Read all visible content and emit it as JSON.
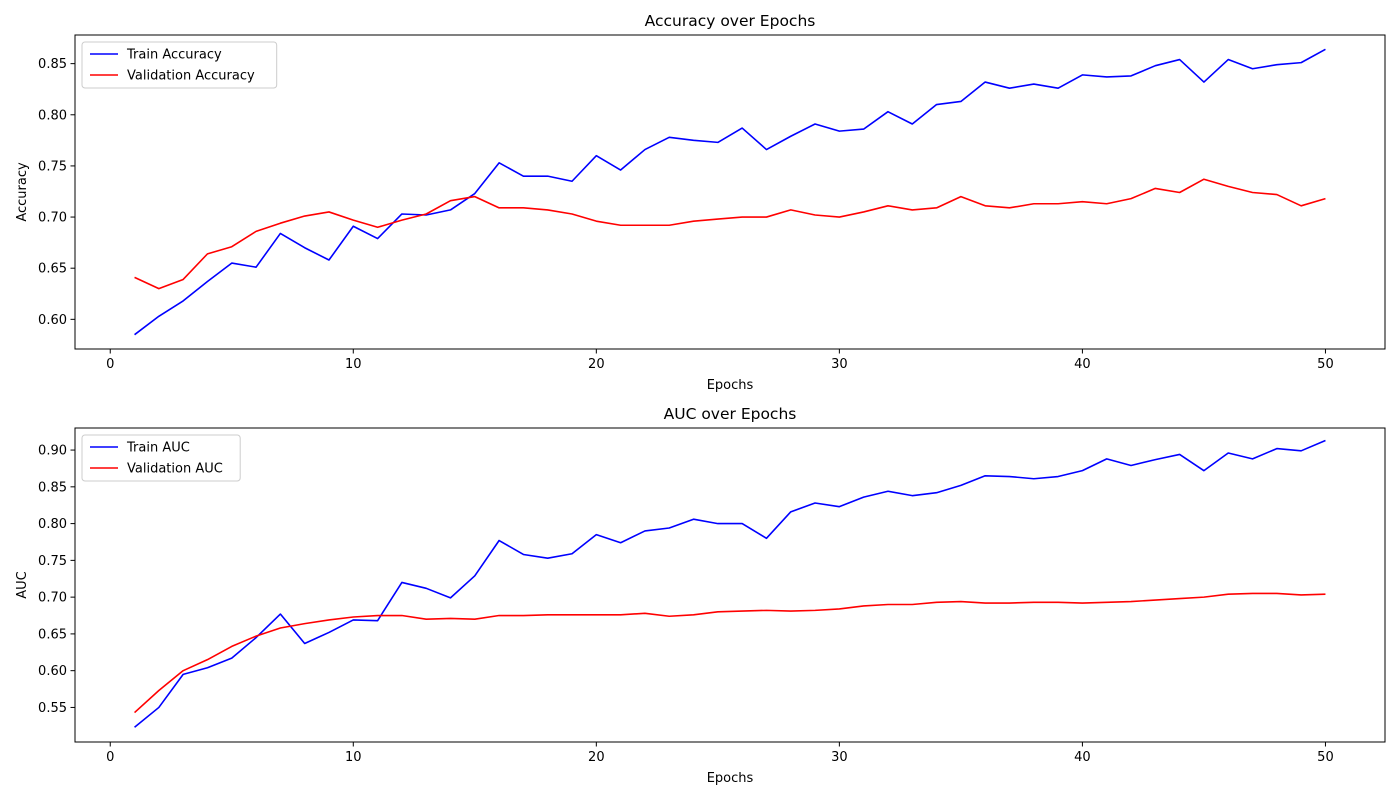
{
  "chart_data": [
    {
      "type": "line",
      "title": "Accuracy over Epochs",
      "xlabel": "Epochs",
      "ylabel": "Accuracy",
      "xlim": [
        -1.45,
        52.45
      ],
      "ylim": [
        0.571,
        0.878
      ],
      "xticks": [
        0,
        10,
        20,
        30,
        40,
        50
      ],
      "yticks": [
        0.6,
        0.65,
        0.7,
        0.75,
        0.8,
        0.85
      ],
      "ytick_labels": [
        "0.60",
        "0.65",
        "0.70",
        "0.75",
        "0.80",
        "0.85"
      ],
      "grid": false,
      "legend": "upper left",
      "x": [
        1,
        2,
        3,
        4,
        5,
        6,
        7,
        8,
        9,
        10,
        11,
        12,
        13,
        14,
        15,
        16,
        17,
        18,
        19,
        20,
        21,
        22,
        23,
        24,
        25,
        26,
        27,
        28,
        29,
        30,
        31,
        32,
        33,
        34,
        35,
        36,
        37,
        38,
        39,
        40,
        41,
        42,
        43,
        44,
        45,
        46,
        47,
        48,
        49,
        50
      ],
      "series": [
        {
          "name": "Train Accuracy",
          "color": "#0000ff",
          "values": [
            0.585,
            0.603,
            0.618,
            0.637,
            0.655,
            0.651,
            0.684,
            0.67,
            0.658,
            0.691,
            0.679,
            0.703,
            0.702,
            0.707,
            0.723,
            0.753,
            0.74,
            0.74,
            0.735,
            0.76,
            0.746,
            0.766,
            0.778,
            0.775,
            0.773,
            0.787,
            0.766,
            0.779,
            0.791,
            0.784,
            0.786,
            0.803,
            0.791,
            0.81,
            0.813,
            0.832,
            0.826,
            0.83,
            0.826,
            0.839,
            0.837,
            0.838,
            0.848,
            0.854,
            0.832,
            0.854,
            0.845,
            0.849,
            0.851,
            0.864
          ]
        },
        {
          "name": "Validation Accuracy",
          "color": "#ff0000",
          "values": [
            0.641,
            0.63,
            0.639,
            0.664,
            0.671,
            0.686,
            0.694,
            0.701,
            0.705,
            0.697,
            0.69,
            0.697,
            0.703,
            0.716,
            0.72,
            0.709,
            0.709,
            0.707,
            0.703,
            0.696,
            0.692,
            0.692,
            0.692,
            0.696,
            0.698,
            0.7,
            0.7,
            0.707,
            0.702,
            0.7,
            0.705,
            0.711,
            0.707,
            0.709,
            0.72,
            0.711,
            0.709,
            0.713,
            0.713,
            0.715,
            0.713,
            0.718,
            0.728,
            0.724,
            0.737,
            0.73,
            0.724,
            0.722,
            0.711,
            0.718
          ]
        }
      ]
    },
    {
      "type": "line",
      "title": "AUC over Epochs",
      "xlabel": "Epochs",
      "ylabel": "AUC",
      "xlim": [
        -1.45,
        52.45
      ],
      "ylim": [
        0.503,
        0.93
      ],
      "xticks": [
        0,
        10,
        20,
        30,
        40,
        50
      ],
      "yticks": [
        0.55,
        0.6,
        0.65,
        0.7,
        0.75,
        0.8,
        0.85,
        0.9
      ],
      "ytick_labels": [
        "0.55",
        "0.60",
        "0.65",
        "0.70",
        "0.75",
        "0.80",
        "0.85",
        "0.90"
      ],
      "grid": false,
      "legend": "upper left",
      "x": [
        1,
        2,
        3,
        4,
        5,
        6,
        7,
        8,
        9,
        10,
        11,
        12,
        13,
        14,
        15,
        16,
        17,
        18,
        19,
        20,
        21,
        22,
        23,
        24,
        25,
        26,
        27,
        28,
        29,
        30,
        31,
        32,
        33,
        34,
        35,
        36,
        37,
        38,
        39,
        40,
        41,
        42,
        43,
        44,
        45,
        46,
        47,
        48,
        49,
        50
      ],
      "series": [
        {
          "name": "Train AUC",
          "color": "#0000ff",
          "values": [
            0.523,
            0.55,
            0.595,
            0.604,
            0.617,
            0.645,
            0.677,
            0.637,
            0.652,
            0.669,
            0.668,
            0.72,
            0.712,
            0.699,
            0.729,
            0.777,
            0.758,
            0.753,
            0.759,
            0.785,
            0.774,
            0.79,
            0.794,
            0.806,
            0.8,
            0.8,
            0.78,
            0.816,
            0.828,
            0.823,
            0.836,
            0.844,
            0.838,
            0.842,
            0.852,
            0.865,
            0.864,
            0.861,
            0.864,
            0.872,
            0.888,
            0.879,
            0.887,
            0.894,
            0.872,
            0.896,
            0.888,
            0.902,
            0.899,
            0.913
          ]
        },
        {
          "name": "Validation AUC",
          "color": "#ff0000",
          "values": [
            0.543,
            0.573,
            0.6,
            0.615,
            0.633,
            0.647,
            0.658,
            0.664,
            0.669,
            0.673,
            0.675,
            0.675,
            0.67,
            0.671,
            0.67,
            0.675,
            0.675,
            0.676,
            0.676,
            0.676,
            0.676,
            0.678,
            0.674,
            0.676,
            0.68,
            0.681,
            0.682,
            0.681,
            0.682,
            0.684,
            0.688,
            0.69,
            0.69,
            0.693,
            0.694,
            0.692,
            0.692,
            0.693,
            0.693,
            0.692,
            0.693,
            0.694,
            0.696,
            0.698,
            0.7,
            0.704,
            0.705,
            0.705,
            0.703,
            0.704
          ]
        }
      ]
    }
  ]
}
